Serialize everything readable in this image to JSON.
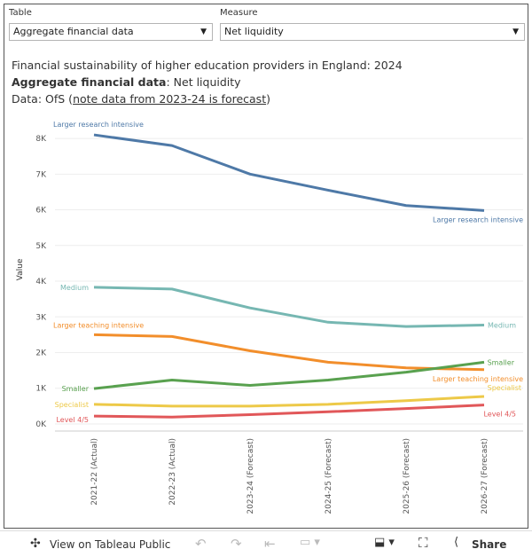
{
  "controls": {
    "table_label": "Table",
    "table_value": "Aggregate financial data",
    "measure_label": "Measure",
    "measure_value": "Net liquidity"
  },
  "chart_data": {
    "type": "line",
    "title": "Financial sustainability of higher education providers in England: 2024",
    "subtitle_bold": "Aggregate financial data",
    "subtitle_rest": ": Net liquidity",
    "source_prefix": "Data: OfS (",
    "source_link": "note data from 2023-24 is forecast",
    "source_suffix": ")",
    "y_label": "Value",
    "categories": [
      "2021-22 (Actual)",
      "2022-23 (Actual)",
      "2023-24 (Forecast)",
      "2024-25 (Forecast)",
      "2025-26 (Forecast)",
      "2026-27 (Forecast)"
    ],
    "series": [
      {
        "name": "Larger research intensive",
        "color": "#4e79a7",
        "values": [
          8100,
          7800,
          7000,
          6550,
          6120,
          5980
        ]
      },
      {
        "name": "Medium",
        "color": "#76b7b2",
        "values": [
          3830,
          3780,
          3250,
          2850,
          2730,
          2770
        ]
      },
      {
        "name": "Larger teaching intensive",
        "color": "#f28e2b",
        "values": [
          2500,
          2450,
          2050,
          1730,
          1570,
          1520
        ]
      },
      {
        "name": "Smaller",
        "color": "#59a14f",
        "values": [
          990,
          1230,
          1080,
          1230,
          1450,
          1730
        ]
      },
      {
        "name": "Specialist",
        "color": "#edc948",
        "values": [
          550,
          500,
          500,
          550,
          650,
          770
        ]
      },
      {
        "name": "Level 4/5",
        "color": "#e15759",
        "values": [
          220,
          190,
          260,
          340,
          430,
          530
        ]
      }
    ],
    "ylim": [
      -200,
      8400
    ],
    "yticks": [
      {
        "value": 0,
        "label": "0K"
      },
      {
        "value": 1000,
        "label": "1K"
      },
      {
        "value": 2000,
        "label": "2K"
      },
      {
        "value": 3000,
        "label": "3K"
      },
      {
        "value": 4000,
        "label": "4K"
      },
      {
        "value": 5000,
        "label": "5K"
      },
      {
        "value": 6000,
        "label": "6K"
      },
      {
        "value": 7000,
        "label": "7K"
      },
      {
        "value": 8000,
        "label": "8K"
      }
    ],
    "grid": true
  },
  "toolbar": {
    "view": "View on Tableau Public",
    "share": "Share"
  }
}
